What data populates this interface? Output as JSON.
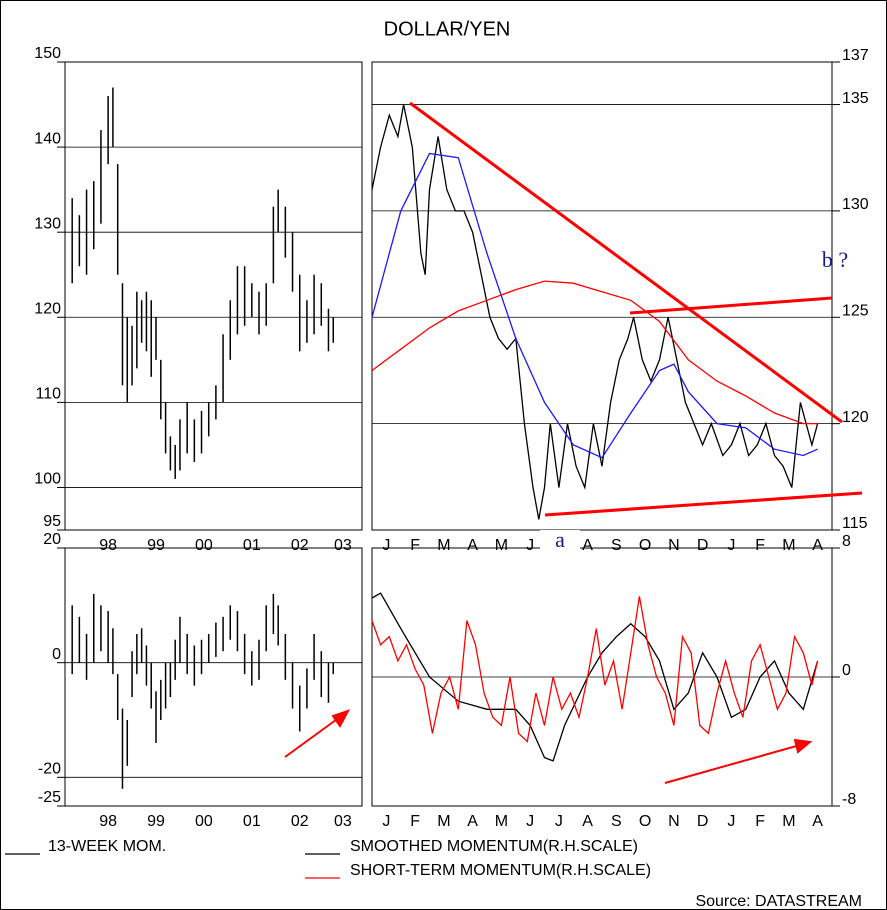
{
  "title": "DOLLAR/YEN",
  "source": "Source: DATASTREAM",
  "chart_data": [
    {
      "type": "range",
      "color": "#000000",
      "grid": true,
      "axis_side": "left",
      "ylim": [
        95,
        150
      ],
      "yticks": [
        95,
        100,
        110,
        120,
        130,
        140,
        150
      ],
      "xlim": [
        1997.6,
        2003.8
      ],
      "xticks": [
        {
          "value": 1998.5,
          "label": "98"
        },
        {
          "value": 1999.5,
          "label": "99"
        },
        {
          "value": 2000.5,
          "label": "00"
        },
        {
          "value": 2001.5,
          "label": "01"
        },
        {
          "value": 2002.5,
          "label": "02"
        },
        {
          "value": 2003.4,
          "label": "03"
        }
      ],
      "x": [
        1997.75,
        1997.9,
        1998.05,
        1998.2,
        1998.35,
        1998.5,
        1998.6,
        1998.7,
        1998.8,
        1998.9,
        1999.0,
        1999.1,
        1999.2,
        1999.3,
        1999.4,
        1999.5,
        1999.6,
        1999.7,
        1999.8,
        1999.9,
        2000.0,
        2000.15,
        2000.3,
        2000.45,
        2000.6,
        2000.75,
        2000.9,
        2001.05,
        2001.2,
        2001.35,
        2001.5,
        2001.65,
        2001.8,
        2001.95,
        2002.05,
        2002.2,
        2002.35,
        2002.5,
        2002.65,
        2002.8,
        2002.95,
        2003.1,
        2003.2
      ],
      "low": [
        124,
        126,
        125,
        128,
        131,
        138,
        140,
        125,
        112,
        110,
        112,
        114,
        117,
        116,
        113,
        115,
        108,
        104,
        102,
        101,
        102,
        104,
        103,
        104,
        106,
        108,
        110,
        115,
        118,
        119,
        120,
        118,
        119,
        124,
        130,
        127,
        123,
        116,
        117,
        118,
        119,
        116,
        117
      ],
      "high": [
        134,
        132,
        135,
        136,
        142,
        146,
        147,
        138,
        124,
        120,
        119,
        123,
        122,
        123,
        122,
        120,
        115,
        110,
        106,
        105,
        108,
        110,
        108,
        109,
        110,
        112,
        118,
        122,
        126,
        126,
        124,
        123,
        124,
        133,
        135,
        133,
        130,
        125,
        122,
        125,
        124,
        121,
        120
      ]
    },
    {
      "type": "line",
      "grid": true,
      "axis_side": "right",
      "ylim": [
        115,
        137
      ],
      "yticks": [
        115,
        120,
        125,
        130,
        135,
        137
      ],
      "xlim": [
        0,
        16
      ],
      "xticks": [
        {
          "value": 0.5,
          "label": "J"
        },
        {
          "value": 1.5,
          "label": "F"
        },
        {
          "value": 2.5,
          "label": "M"
        },
        {
          "value": 3.5,
          "label": "A"
        },
        {
          "value": 4.5,
          "label": "M"
        },
        {
          "value": 5.5,
          "label": "J"
        },
        {
          "value": 7.5,
          "label": "A"
        },
        {
          "value": 8.5,
          "label": "S"
        },
        {
          "value": 9.5,
          "label": "O"
        },
        {
          "value": 10.5,
          "label": "N"
        },
        {
          "value": 11.5,
          "label": "D"
        },
        {
          "value": 12.5,
          "label": "J"
        },
        {
          "value": 13.5,
          "label": "F"
        },
        {
          "value": 14.5,
          "label": "M"
        },
        {
          "value": 15.5,
          "label": "A"
        }
      ],
      "annotations": [
        "a",
        "b ?"
      ],
      "series": [
        {
          "color": "#000000",
          "x": [
            0.0,
            0.3,
            0.6,
            0.9,
            1.1,
            1.4,
            1.7,
            1.85,
            2.0,
            2.3,
            2.6,
            2.9,
            3.2,
            3.5,
            3.8,
            4.1,
            4.4,
            4.7,
            5.0,
            5.3,
            5.6,
            5.8,
            6.0,
            6.2,
            6.5,
            6.8,
            7.1,
            7.4,
            7.7,
            8.0,
            8.3,
            8.6,
            8.9,
            9.1,
            9.4,
            9.7,
            10.0,
            10.3,
            10.6,
            10.9,
            11.2,
            11.5,
            11.8,
            12.2,
            12.5,
            12.8,
            13.1,
            13.4,
            13.7,
            14.0,
            14.3,
            14.6,
            14.9,
            15.1,
            15.3,
            15.5
          ],
          "values": [
            131,
            133,
            134.5,
            133.5,
            135,
            133,
            128,
            127,
            131,
            133.5,
            131,
            130,
            130,
            129,
            127,
            125,
            124,
            123.5,
            124,
            120,
            117,
            115.5,
            117,
            120,
            117,
            120,
            118,
            117,
            120,
            118,
            121,
            123,
            124,
            125,
            123,
            122,
            123,
            125,
            123,
            121,
            120,
            119,
            120,
            118.5,
            119,
            120,
            118.5,
            119,
            120,
            118.5,
            118,
            117,
            121,
            120,
            119,
            120
          ]
        },
        {
          "color": "#1a1aff",
          "x": [
            0,
            1,
            2,
            3,
            4,
            5,
            6,
            7,
            8,
            9,
            10,
            10.5,
            11,
            12,
            13,
            14,
            15,
            15.5
          ],
          "values": [
            125,
            130,
            132.7,
            132.5,
            128,
            124,
            121,
            119,
            118.4,
            120.5,
            122.5,
            122.8,
            121.5,
            120,
            119.8,
            118.8,
            118.5,
            118.8
          ]
        },
        {
          "color": "#ff0000",
          "x": [
            0,
            1,
            2,
            3,
            4,
            5,
            6,
            7,
            8,
            9,
            10,
            11,
            12,
            13,
            14,
            15,
            15.5
          ],
          "values": [
            122.5,
            123.5,
            124.5,
            125.3,
            125.8,
            126.3,
            126.7,
            126.6,
            126.2,
            125.8,
            124.8,
            123,
            122,
            121.3,
            120.5,
            120,
            120
          ]
        }
      ]
    },
    {
      "type": "range",
      "color": "#000000",
      "grid": true,
      "axis_side": "left",
      "name": "13-WEEK MOM.",
      "ylim": [
        -25,
        20
      ],
      "yticks": [
        -25,
        -20,
        0,
        20
      ],
      "xlim": [
        1997.6,
        2003.8
      ],
      "xticks": [
        {
          "value": 1998.5,
          "label": "98"
        },
        {
          "value": 1999.5,
          "label": "99"
        },
        {
          "value": 2000.5,
          "label": "00"
        },
        {
          "value": 2001.5,
          "label": "01"
        },
        {
          "value": 2002.5,
          "label": "02"
        },
        {
          "value": 2003.4,
          "label": "03"
        }
      ],
      "x": [
        1997.75,
        1997.9,
        1998.05,
        1998.2,
        1998.35,
        1998.5,
        1998.6,
        1998.7,
        1998.8,
        1998.9,
        1999.0,
        1999.1,
        1999.2,
        1999.3,
        1999.4,
        1999.5,
        1999.6,
        1999.7,
        1999.8,
        1999.9,
        2000.0,
        2000.15,
        2000.3,
        2000.45,
        2000.6,
        2000.75,
        2000.9,
        2001.05,
        2001.2,
        2001.35,
        2001.5,
        2001.65,
        2001.8,
        2001.95,
        2002.05,
        2002.2,
        2002.35,
        2002.5,
        2002.65,
        2002.8,
        2002.95,
        2003.1,
        2003.2
      ],
      "low": [
        -2,
        0,
        -3,
        0,
        2,
        0,
        -2,
        -10,
        -22,
        -18,
        -6,
        -2,
        0,
        -4,
        -8,
        -14,
        -10,
        -8,
        -6,
        -3,
        0,
        -2,
        -4,
        -2,
        0,
        1,
        2,
        4,
        2,
        -2,
        -4,
        -3,
        2,
        5,
        3,
        -3,
        -8,
        -12,
        -8,
        -3,
        -6,
        -7,
        -2
      ],
      "high": [
        10,
        8,
        5,
        12,
        10,
        9,
        6,
        -2,
        -8,
        -10,
        2,
        5,
        6,
        3,
        0,
        -5,
        -3,
        0,
        0,
        4,
        8,
        5,
        3,
        4,
        5,
        7,
        8,
        10,
        9,
        5,
        2,
        4,
        10,
        12,
        10,
        5,
        0,
        -4,
        -1,
        5,
        2,
        0,
        0
      ]
    },
    {
      "type": "line",
      "grid": true,
      "axis_side": "right",
      "ylim": [
        -8,
        8
      ],
      "yticks": [
        -8,
        0,
        8
      ],
      "xlim": [
        0,
        16
      ],
      "xticks": [
        {
          "value": 0.5,
          "label": "J"
        },
        {
          "value": 1.5,
          "label": "F"
        },
        {
          "value": 2.5,
          "label": "M"
        },
        {
          "value": 3.5,
          "label": "A"
        },
        {
          "value": 4.5,
          "label": "M"
        },
        {
          "value": 5.5,
          "label": "J"
        },
        {
          "value": 6.5,
          "label": "J"
        },
        {
          "value": 7.5,
          "label": "A"
        },
        {
          "value": 8.5,
          "label": "S"
        },
        {
          "value": 9.5,
          "label": "O"
        },
        {
          "value": 10.5,
          "label": "N"
        },
        {
          "value": 11.5,
          "label": "D"
        },
        {
          "value": 12.5,
          "label": "J"
        },
        {
          "value": 13.5,
          "label": "F"
        },
        {
          "value": 14.5,
          "label": "M"
        },
        {
          "value": 15.5,
          "label": "A"
        }
      ],
      "series": [
        {
          "name": "SMOOTHED MOMENTUM(R.H.SCALE)",
          "color": "#000000",
          "x": [
            0.0,
            0.3,
            1.0,
            2.0,
            3.0,
            4.0,
            5.0,
            5.5,
            6.0,
            6.3,
            6.7,
            7.5,
            8.0,
            8.5,
            9.0,
            9.5,
            10.0,
            10.5,
            11.0,
            11.5,
            12.0,
            12.5,
            13.0,
            13.5,
            14.0,
            14.5,
            15.0,
            15.5
          ],
          "values": [
            4.9,
            5.2,
            3,
            0,
            -1.5,
            -2,
            -2,
            -3,
            -5,
            -5.2,
            -3,
            0,
            1.5,
            2.5,
            3.3,
            2.5,
            1,
            -2,
            -1,
            1.5,
            0,
            -2.5,
            -2,
            0,
            1,
            -1,
            -2,
            1
          ]
        },
        {
          "name": "SHORT-TERM MOMENTUM(R.H.SCALE)",
          "color": "#ff0000",
          "x": [
            0,
            0.3,
            0.6,
            0.9,
            1.2,
            1.5,
            1.8,
            2.1,
            2.4,
            2.7,
            3.0,
            3.3,
            3.6,
            3.9,
            4.2,
            4.5,
            4.8,
            5.1,
            5.4,
            5.7,
            6.0,
            6.3,
            6.6,
            6.9,
            7.2,
            7.5,
            7.8,
            8.1,
            8.4,
            8.7,
            9.0,
            9.3,
            9.6,
            9.9,
            10.2,
            10.5,
            10.8,
            11.1,
            11.4,
            11.7,
            12.0,
            12.3,
            12.6,
            12.9,
            13.2,
            13.5,
            13.8,
            14.1,
            14.4,
            14.7,
            15.0,
            15.3,
            15.5
          ],
          "values": [
            3.5,
            2,
            2.5,
            1,
            2,
            0.5,
            -0.5,
            -3.5,
            -1,
            0,
            -2,
            3.5,
            2,
            -1,
            -2.5,
            -3,
            0,
            -3.5,
            -4,
            -1,
            -3,
            0,
            -2,
            -1,
            -2.5,
            0,
            3,
            -0.5,
            1,
            -2,
            1.5,
            5,
            2,
            0,
            -1,
            -3,
            2.5,
            1.5,
            -3,
            -3.5,
            -1,
            1,
            -1,
            -2.5,
            1,
            2,
            0,
            -2,
            -1,
            2.5,
            1.5,
            -0.5,
            1
          ]
        }
      ]
    }
  ]
}
